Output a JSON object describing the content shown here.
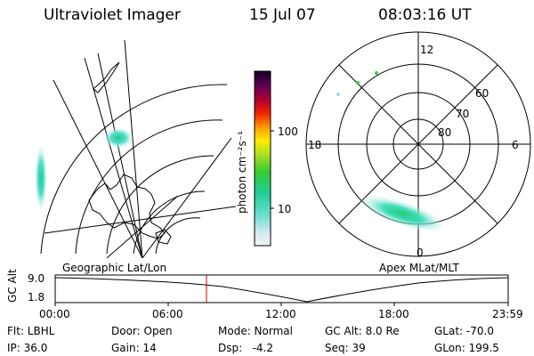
{
  "header": {
    "instrument": "Ultraviolet Imager",
    "date": "15 Jul 07",
    "time": "08:03:16 UT"
  },
  "colorbar": {
    "unit_label": "photon cm⁻²s⁻¹",
    "ticks": [
      "100",
      "10"
    ]
  },
  "left_panel": {
    "label": "Geographic Lat/Lon"
  },
  "right_panel": {
    "label": "Apex MLat/MLT",
    "mlt_labels": [
      "12",
      "18",
      "6",
      "0"
    ],
    "mlat_labels": [
      "60",
      "70",
      "80"
    ]
  },
  "timeline": {
    "y_axis_label": "GC Alt",
    "y_ticks": [
      "9.0",
      "1.8"
    ],
    "x_ticks": [
      "00:00",
      "06:00",
      "12:00",
      "18:00",
      "23:59"
    ],
    "cursor_color": "#cc0000"
  },
  "status": {
    "flt": "Flt: LBHL",
    "ip": "IP: 36.0",
    "door": "Door: Open",
    "gain": "Gain: 14",
    "mode": "Mode: Normal",
    "dsp": "Dsp:   -4.2",
    "gcalt": "GC Alt: 8.0 Re",
    "seq": "Seq: 39",
    "glat": "GLat: -70.0",
    "glon": "GLon: 199.5"
  }
}
